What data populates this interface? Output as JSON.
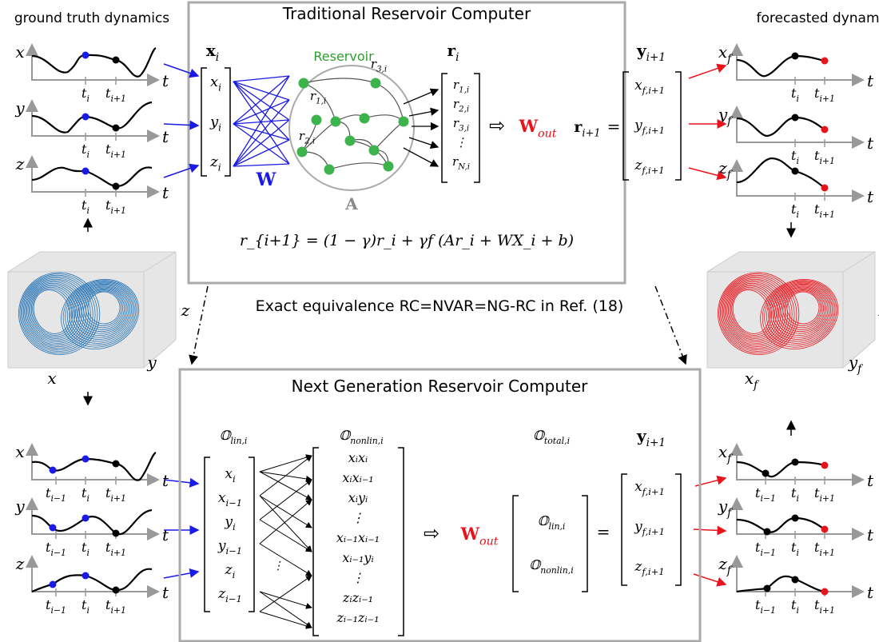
{
  "headers": {
    "ground_truth": "ground truth dynamics",
    "forecasted": "forecasted dynamics",
    "equivalence": "Exact equivalence RC=NVAR=NG-RC in Ref. (18)"
  },
  "traditional": {
    "title": "Traditional Reservoir Computer",
    "reservoir_label": "Reservoir",
    "input_label": {
      "base": "x",
      "sub": "i"
    },
    "input_vector": [
      {
        "base": "x",
        "sub": "i"
      },
      {
        "base": "y",
        "sub": "i"
      },
      {
        "base": "z",
        "sub": "i"
      }
    ],
    "W": "W",
    "A": "A",
    "node_labels": [
      {
        "base": "r",
        "sub": "1,i"
      },
      {
        "base": "r",
        "sub": "3,i"
      },
      {
        "base": "r",
        "sub": "2,i"
      }
    ],
    "state_label": {
      "base": "r",
      "sub": "i"
    },
    "state_vector": [
      {
        "base": "r",
        "sub": "1,i"
      },
      {
        "base": "r",
        "sub": "2,i"
      },
      {
        "base": "r",
        "sub": "3,i"
      },
      {
        "base": "⋮",
        "sub": ""
      },
      {
        "base": "r",
        "sub": "N,i"
      }
    ],
    "Wout": {
      "base": "W",
      "sub": "out"
    },
    "r_next": {
      "base": "r",
      "sub": "i+1"
    },
    "equals": "=",
    "output_label": {
      "base": "y",
      "sub": "i+1"
    },
    "output_vector": [
      {
        "base": "x",
        "sub": "f,i+1"
      },
      {
        "base": "y",
        "sub": "f,i+1"
      },
      {
        "base": "z",
        "sub": "f,i+1"
      }
    ],
    "update_equation": "r_{i+1} = (1 − γ)r_i + γf (Ar_i + WX_i + b)"
  },
  "ngrc": {
    "title": "Next Generation Reservoir Computer",
    "lin_label": {
      "base": "𝕆",
      "sub": "lin,i"
    },
    "nonlin_label": {
      "base": "𝕆",
      "sub": "nonlin,i"
    },
    "total_label": {
      "base": "𝕆",
      "sub": "total,i"
    },
    "output_label": {
      "base": "y",
      "sub": "i+1"
    },
    "lin_vector": [
      {
        "base": "x",
        "sub": "i"
      },
      {
        "base": "x",
        "sub": "i−1"
      },
      {
        "base": "y",
        "sub": "i"
      },
      {
        "base": "y",
        "sub": "i−1"
      },
      {
        "base": "z",
        "sub": "i"
      },
      {
        "base": "z",
        "sub": "i−1"
      }
    ],
    "nonlin_vector": [
      "xᵢxᵢ",
      "xᵢxᵢ₋₁",
      "xᵢyᵢ",
      "⋮",
      "xᵢ₋₁xᵢ₋₁",
      "xᵢ₋₁yᵢ",
      "⋮",
      "zᵢzᵢ₋₁",
      "zᵢ₋₁zᵢ₋₁"
    ],
    "Wout": {
      "base": "W",
      "sub": "out"
    },
    "total_vector": [
      {
        "base": "𝕆",
        "sub": "lin,i"
      },
      {
        "base": "𝕆",
        "sub": "nonlin,i"
      }
    ],
    "equals": "=",
    "output_vector": [
      {
        "base": "x",
        "sub": "f,i+1"
      },
      {
        "base": "y",
        "sub": "f,i+1"
      },
      {
        "base": "z",
        "sub": "f,i+1"
      }
    ]
  },
  "plots": {
    "t": "t",
    "vars": [
      "x",
      "y",
      "z"
    ],
    "forecast_vars": [
      {
        "base": "x",
        "sub": "f"
      },
      {
        "base": "y",
        "sub": "f"
      },
      {
        "base": "z",
        "sub": "f"
      }
    ],
    "ticks_top": [
      {
        "base": "t",
        "sub": "i"
      },
      {
        "base": "t",
        "sub": "i+1"
      }
    ],
    "ticks_bottom": [
      {
        "base": "t",
        "sub": "i−1"
      },
      {
        "base": "t",
        "sub": "i"
      },
      {
        "base": "t",
        "sub": "i+1"
      }
    ]
  },
  "attractor": {
    "left_axes": [
      "x",
      "y",
      "z"
    ],
    "right_axes": [
      {
        "base": "x",
        "sub": "f"
      },
      {
        "base": "y",
        "sub": "f"
      },
      {
        "base": "z",
        "sub": "f"
      }
    ]
  },
  "colors": {
    "truth": "#1f6fb4",
    "forecast": "#e8141b",
    "input": "#1a1ae6",
    "reservoir": "#2e9e2e",
    "node": "#3cb44b",
    "box": "#aaaaaa",
    "wout": "#e8141b"
  }
}
